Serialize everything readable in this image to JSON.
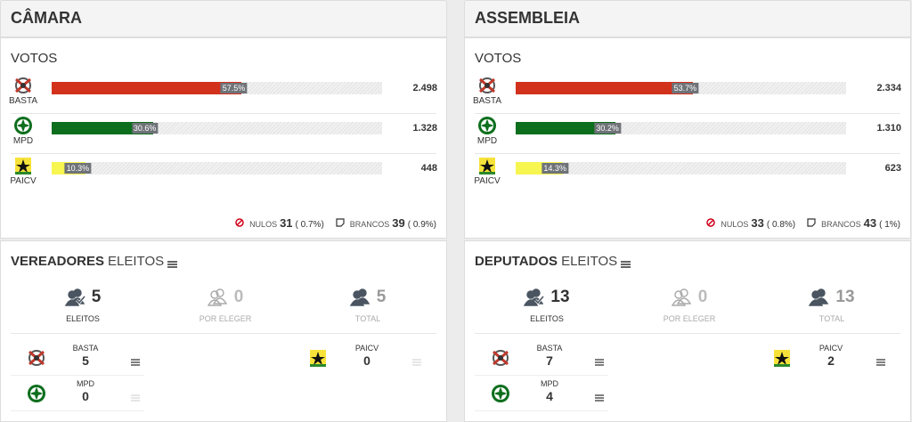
{
  "panels": [
    {
      "title": "CÂMARA",
      "votes_title": "VOTOS",
      "parties": [
        {
          "name": "BASTA",
          "color": "#d2311c",
          "pct": 57.5,
          "pct_label": "57.5%",
          "votes": "2.498"
        },
        {
          "name": "MPD",
          "color": "#0d6e1d",
          "pct": 30.6,
          "pct_label": "30.6%",
          "votes": "1.328"
        },
        {
          "name": "PAICV",
          "color": "#f7f550",
          "pct": 10.3,
          "pct_label": "10.3%",
          "votes": "448"
        }
      ],
      "nulos_label": "NULOS",
      "nulos": "31",
      "nulos_pct": "( 0.7%)",
      "brancos_label": "BRANCOS",
      "brancos": "39",
      "brancos_pct": "( 0.9%)",
      "elected_title": "VEREADORES",
      "elected_suffix": "ELEITOS",
      "stats": [
        {
          "value": "5",
          "label": "ELEITOS"
        },
        {
          "value": "0",
          "label": "POR ELEGER"
        },
        {
          "value": "5",
          "label": "TOTAL"
        }
      ],
      "seats": [
        {
          "name": "BASTA",
          "seats": "5"
        },
        {
          "name": "PAICV",
          "seats": "0"
        },
        {
          "name": "MPD",
          "seats": "0"
        }
      ]
    },
    {
      "title": "ASSEMBLEIA",
      "votes_title": "VOTOS",
      "parties": [
        {
          "name": "BASTA",
          "color": "#d2311c",
          "pct": 53.7,
          "pct_label": "53.7%",
          "votes": "2.334"
        },
        {
          "name": "MPD",
          "color": "#0d6e1d",
          "pct": 30.2,
          "pct_label": "30.2%",
          "votes": "1.310"
        },
        {
          "name": "PAICV",
          "color": "#f7f550",
          "pct": 14.3,
          "pct_label": "14.3%",
          "votes": "623"
        }
      ],
      "nulos_label": "NULOS",
      "nulos": "33",
      "nulos_pct": "( 0.8%)",
      "brancos_label": "BRANCOS",
      "brancos": "43",
      "brancos_pct": "( 1%)",
      "elected_title": "DEPUTADOS",
      "elected_suffix": "ELEITOS",
      "stats": [
        {
          "value": "13",
          "label": "ELEITOS"
        },
        {
          "value": "0",
          "label": "POR ELEGER"
        },
        {
          "value": "13",
          "label": "TOTAL"
        }
      ],
      "seats": [
        {
          "name": "BASTA",
          "seats": "7"
        },
        {
          "name": "PAICV",
          "seats": "2"
        },
        {
          "name": "MPD",
          "seats": "4"
        }
      ]
    }
  ]
}
